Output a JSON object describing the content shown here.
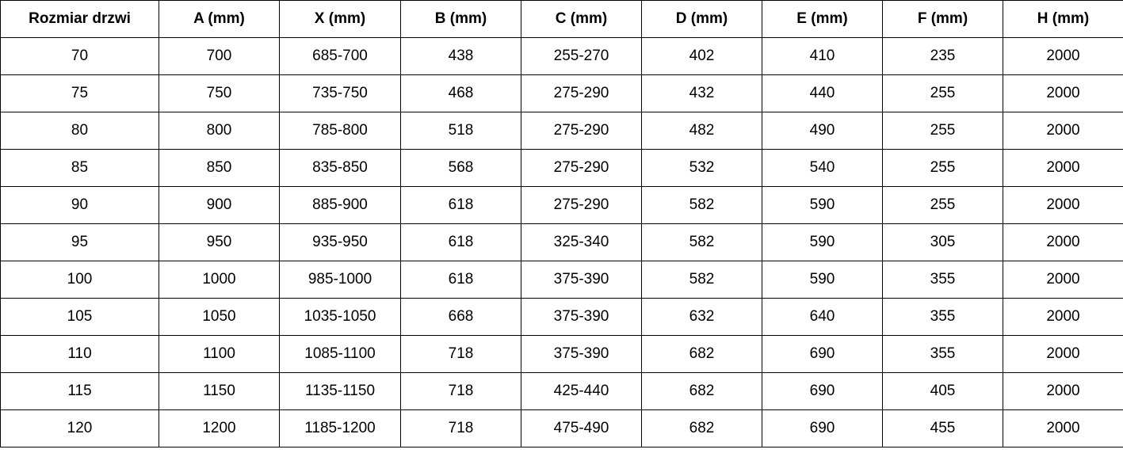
{
  "table": {
    "columns": [
      "Rozmiar drzwi",
      "A (mm)",
      "X (mm)",
      "B (mm)",
      "C (mm)",
      "D (mm)",
      "E (mm)",
      "F (mm)",
      "H (mm)"
    ],
    "rows": [
      [
        "70",
        "700",
        "685-700",
        "438",
        "255-270",
        "402",
        "410",
        "235",
        "2000"
      ],
      [
        "75",
        "750",
        "735-750",
        "468",
        "275-290",
        "432",
        "440",
        "255",
        "2000"
      ],
      [
        "80",
        "800",
        "785-800",
        "518",
        "275-290",
        "482",
        "490",
        "255",
        "2000"
      ],
      [
        "85",
        "850",
        "835-850",
        "568",
        "275-290",
        "532",
        "540",
        "255",
        "2000"
      ],
      [
        "90",
        "900",
        "885-900",
        "618",
        "275-290",
        "582",
        "590",
        "255",
        "2000"
      ],
      [
        "95",
        "950",
        "935-950",
        "618",
        "325-340",
        "582",
        "590",
        "305",
        "2000"
      ],
      [
        "100",
        "1000",
        "985-1000",
        "618",
        "375-390",
        "582",
        "590",
        "355",
        "2000"
      ],
      [
        "105",
        "1050",
        "1035-1050",
        "668",
        "375-390",
        "632",
        "640",
        "355",
        "2000"
      ],
      [
        "110",
        "1100",
        "1085-1100",
        "718",
        "375-390",
        "682",
        "690",
        "355",
        "2000"
      ],
      [
        "115",
        "1150",
        "1135-1150",
        "718",
        "425-440",
        "682",
        "690",
        "405",
        "2000"
      ],
      [
        "120",
        "1200",
        "1185-1200",
        "718",
        "475-490",
        "682",
        "690",
        "455",
        "2000"
      ]
    ]
  }
}
